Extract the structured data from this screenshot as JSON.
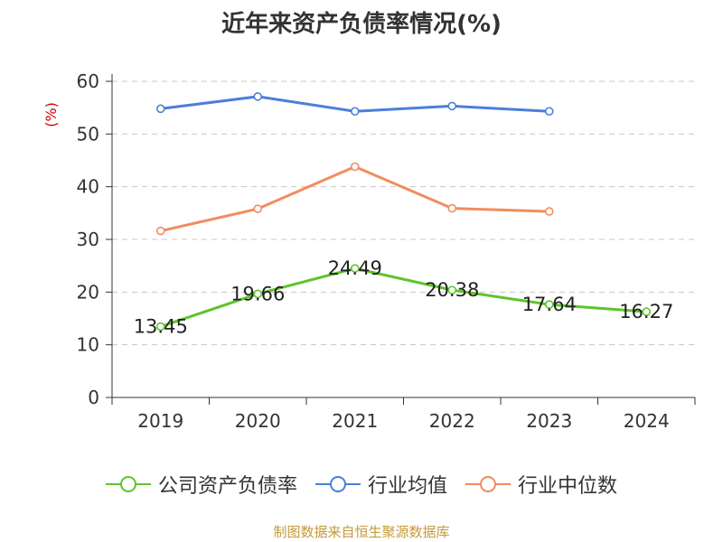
{
  "title": "近年来资产负债率情况(%)",
  "source": "制图数据来自恒生聚源数据库",
  "colors": {
    "company": "#5ec52a",
    "avg": "#4a7fdb",
    "median": "#f28c5e",
    "source": "#c49a3a",
    "yunit": "#cc0000",
    "axis": "#333333",
    "grid": "#c8c8c8"
  },
  "chart_data": {
    "type": "line",
    "title": "近年来资产负债率情况(%)",
    "ylabel": "(%)",
    "xlabel": "",
    "categories": [
      "2019",
      "2020",
      "2021",
      "2022",
      "2023",
      "2024"
    ],
    "ylim": [
      0,
      60
    ],
    "yticks": [
      0,
      10,
      20,
      30,
      40,
      50,
      60
    ],
    "grid": "horizontal dashed",
    "legend": "bottom",
    "series": [
      {
        "name": "公司资产负债率",
        "color_key": "company",
        "values": [
          13.45,
          19.66,
          24.49,
          20.38,
          17.64,
          16.27
        ],
        "labels": [
          "13.45",
          "19.66",
          "24.49",
          "20.38",
          "17.64",
          "16.27"
        ]
      },
      {
        "name": "行业均值",
        "color_key": "avg",
        "values": [
          54.8,
          57.1,
          54.3,
          55.3,
          54.3,
          null
        ]
      },
      {
        "name": "行业中位数",
        "color_key": "median",
        "values": [
          31.6,
          35.8,
          43.8,
          35.9,
          35.3,
          null
        ]
      }
    ]
  }
}
